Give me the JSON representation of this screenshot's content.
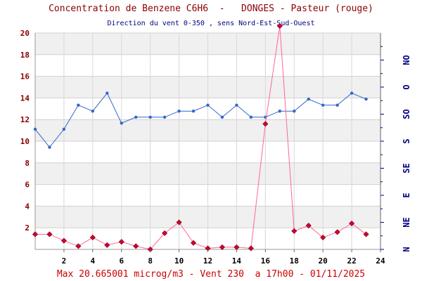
{
  "chart_data": {
    "type": "line",
    "title": "Concentration de Benzene C6H6  -   DONGES - Pasteur (rouge)",
    "subtitle": "Direction du vent 0-350 , sens Nord-Est-Sud-Ouest",
    "footer": "Max 20.665001 microg/m3 - Vent 230  a 17h00 - 01/11/2025",
    "x": [
      0,
      1,
      2,
      3,
      4,
      5,
      6,
      7,
      8,
      9,
      10,
      11,
      12,
      13,
      14,
      15,
      16,
      17,
      18,
      19,
      20,
      21,
      22,
      23
    ],
    "xlim": [
      0,
      24
    ],
    "x_tick_labels": [
      "2",
      "4",
      "6",
      "8",
      "10",
      "12",
      "14",
      "16",
      "18",
      "20",
      "22",
      "24"
    ],
    "ylim": [
      0,
      20
    ],
    "y_tick_labels": [
      "2",
      "4",
      "6",
      "8",
      "10",
      "12",
      "14",
      "16",
      "18",
      "20"
    ],
    "y2_tick_labels": [
      "N",
      "NE",
      "E",
      "SE",
      "S",
      "SO",
      "O",
      "NO"
    ],
    "grid": true,
    "series": [
      {
        "name": "",
        "axis": "left",
        "color": "#cc0033",
        "marker": "diamond",
        "values": [
          1.4,
          1.4,
          0.8,
          0.3,
          1.1,
          0.4,
          0.7,
          0.3,
          0.0,
          1.5,
          2.5,
          0.6,
          0.1,
          0.2,
          0.2,
          0.1,
          11.6,
          20.665,
          1.7,
          2.2,
          1.1,
          1.6,
          2.4,
          1.4
        ]
      },
      {
        "name": "",
        "axis": "right",
        "color": "#3366cc",
        "marker": "dot",
        "values": [
          200,
          170,
          200,
          240,
          230,
          260,
          210,
          220,
          220,
          220,
          230,
          230,
          240,
          220,
          240,
          220,
          220,
          230,
          230,
          250,
          240,
          240,
          260,
          250
        ]
      }
    ]
  }
}
